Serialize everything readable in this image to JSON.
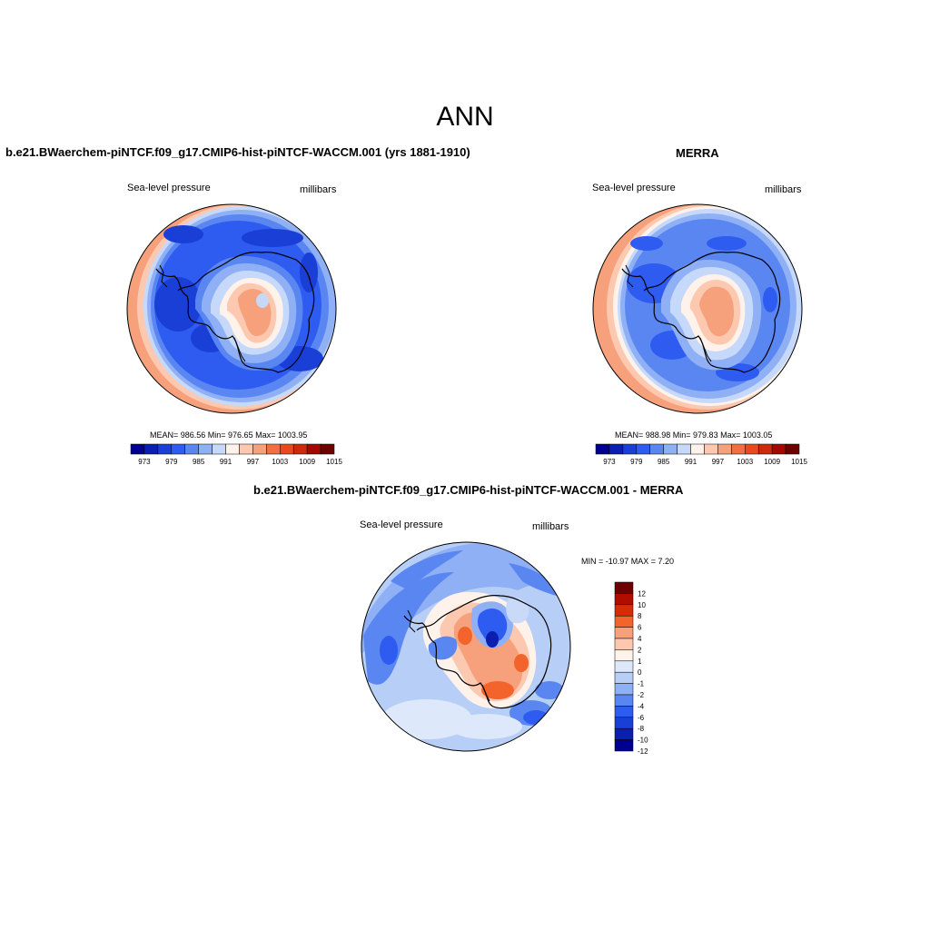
{
  "page": {
    "title": "ANN"
  },
  "panels": [
    {
      "title": "b.e21.BWaerchem-piNTCF.f09_g17.CMIP6-hist-piNTCF-WACCM.001 (yrs 1881-1910)",
      "variable": "Sea-level pressure",
      "units": "millibars",
      "stats": "MEAN= 986.56  Min= 976.65  Max= 1003.95"
    },
    {
      "title": "MERRA",
      "variable": "Sea-level pressure",
      "units": "millibars",
      "stats": "MEAN= 988.98  Min= 979.83  Max= 1003.05"
    },
    {
      "title": "b.e21.BWaerchem-piNTCF.f09_g17.CMIP6-hist-piNTCF-WACCM.001 - MERRA",
      "variable": "Sea-level pressure",
      "units": "millibars",
      "stats": "MIN = -10.97 MAX =   7.20"
    }
  ],
  "colorbars": {
    "field": {
      "colors": [
        "#00008f",
        "#0a1fb0",
        "#1a3fd6",
        "#2f5cf0",
        "#5a86f2",
        "#8fb0f5",
        "#c6d9fa",
        "#fff2ea",
        "#fcc9b0",
        "#f7a07c",
        "#f2703f",
        "#e84a1c",
        "#cc2a0a",
        "#a00a00",
        "#6e0000"
      ],
      "labels": [
        "973",
        "979",
        "985",
        "991",
        "997",
        "1003",
        "1009",
        "1015"
      ]
    },
    "diff": {
      "colors": [
        "#6e0000",
        "#b00d00",
        "#d72a08",
        "#f2642b",
        "#f7a07c",
        "#fcc9b0",
        "#fff2ea",
        "#dde9fa",
        "#b7cef7",
        "#8fb0f5",
        "#5a86f2",
        "#2f5cf0",
        "#1a3fd6",
        "#0a1fb0",
        "#00008f"
      ],
      "labels": [
        "12",
        "10",
        "8",
        "6",
        "4",
        "2",
        "1",
        "0",
        "-1",
        "-2",
        "-4",
        "-6",
        "-8",
        "-10",
        "-12"
      ]
    }
  }
}
